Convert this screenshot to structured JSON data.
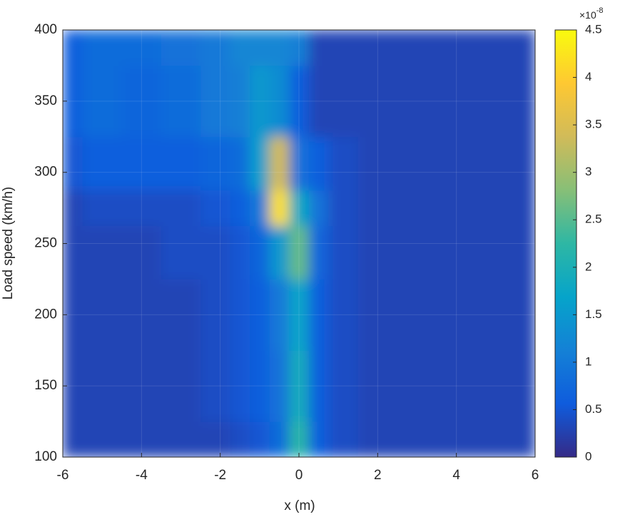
{
  "chart_data": {
    "type": "heatmap",
    "xlabel": "x (m)",
    "ylabel": "Load speed (km/h)",
    "x": [
      -6,
      -5,
      -4,
      -3,
      -2,
      -1.5,
      -1,
      -0.5,
      0,
      0.5,
      1,
      2,
      3,
      4,
      5,
      6
    ],
    "y": [
      100,
      150,
      200,
      250,
      275,
      300,
      350,
      400
    ],
    "z": [
      [
        0.3,
        0.3,
        0.3,
        0.3,
        0.3,
        0.4,
        0.5,
        0.8,
        2.2,
        0.6,
        0.4,
        0.3,
        0.3,
        0.3,
        0.3,
        0.3
      ],
      [
        0.3,
        0.3,
        0.3,
        0.3,
        0.4,
        0.5,
        0.6,
        0.9,
        1.9,
        0.6,
        0.4,
        0.3,
        0.3,
        0.3,
        0.3,
        0.3
      ],
      [
        0.3,
        0.3,
        0.3,
        0.3,
        0.4,
        0.5,
        0.6,
        1.0,
        1.7,
        0.6,
        0.4,
        0.3,
        0.3,
        0.3,
        0.3,
        0.3
      ],
      [
        0.3,
        0.3,
        0.3,
        0.4,
        0.4,
        0.5,
        0.7,
        1.5,
        2.6,
        0.7,
        0.4,
        0.3,
        0.3,
        0.3,
        0.3,
        0.3
      ],
      [
        0.3,
        0.4,
        0.4,
        0.4,
        0.5,
        0.6,
        1.0,
        4.2,
        1.8,
        0.9,
        0.4,
        0.3,
        0.3,
        0.3,
        0.3,
        0.3
      ],
      [
        0.5,
        0.6,
        0.6,
        0.6,
        0.7,
        0.8,
        1.6,
        3.4,
        0.9,
        0.6,
        0.4,
        0.3,
        0.3,
        0.3,
        0.3,
        0.3
      ],
      [
        0.6,
        0.8,
        0.7,
        0.8,
        1.0,
        1.1,
        1.5,
        1.3,
        0.6,
        0.3,
        0.3,
        0.3,
        0.3,
        0.3,
        0.3,
        0.3
      ],
      [
        0.6,
        0.8,
        0.8,
        0.9,
        1.0,
        1.2,
        1.2,
        1.2,
        1.1,
        0.3,
        0.3,
        0.3,
        0.3,
        0.3,
        0.3,
        0.3
      ]
    ],
    "xlim": [
      -6,
      6
    ],
    "xticks": [
      -6,
      -4,
      -2,
      0,
      2,
      4,
      6
    ],
    "ylim": [
      100,
      400
    ],
    "yticks": [
      100,
      150,
      200,
      250,
      300,
      350,
      400
    ],
    "grid": true,
    "clim": [
      0,
      4.5
    ],
    "cticks": [
      0,
      0.5,
      1,
      1.5,
      2,
      2.5,
      3,
      3.5,
      4,
      4.5
    ],
    "colorbar_multiplier": "×10",
    "colorbar_exponent": "-8",
    "colormap": [
      "#352a87",
      "#0f5cdd",
      "#1481d6",
      "#06a4ca",
      "#2eb7a4",
      "#87bf77",
      "#d1bb59",
      "#fec832",
      "#f9fb0e"
    ]
  }
}
